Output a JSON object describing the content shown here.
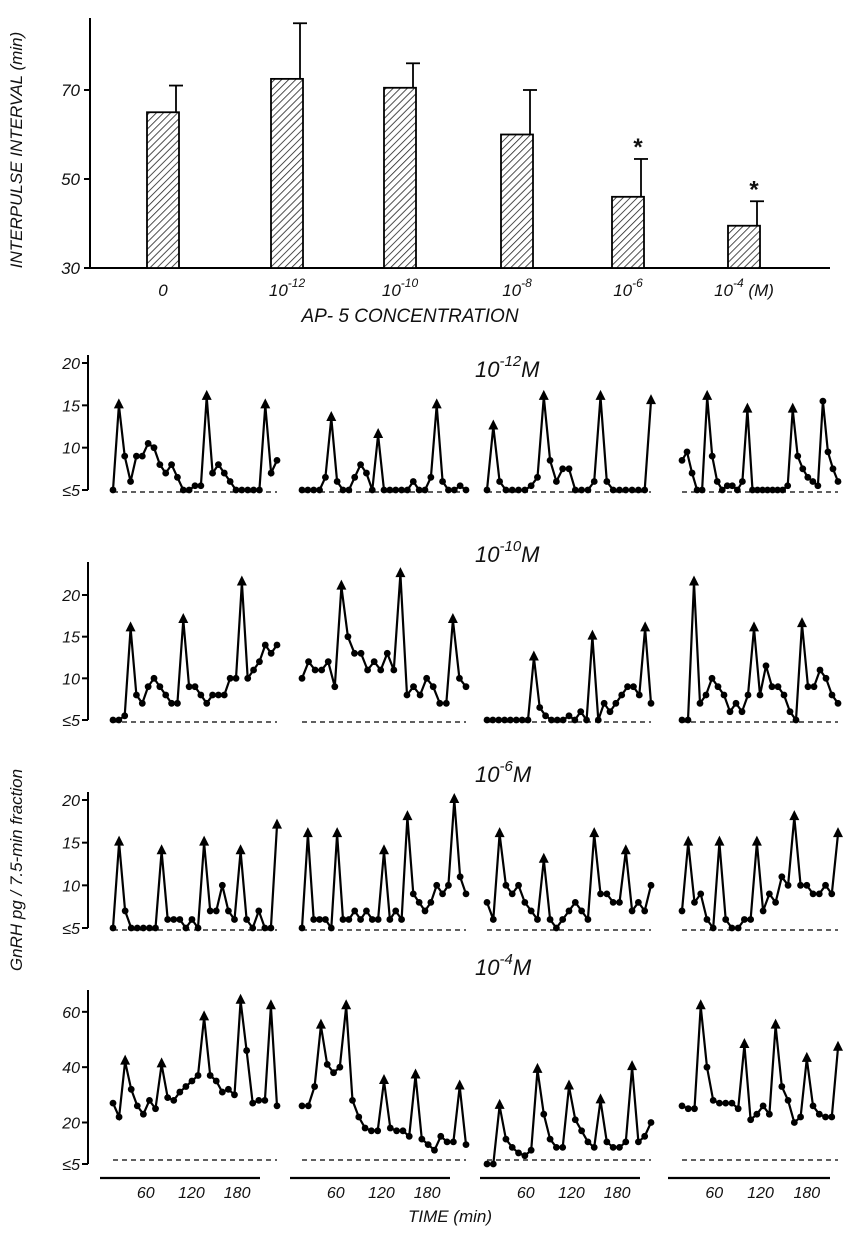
{
  "chart_data": [
    {
      "type": "bar",
      "ylabel": "INTERPULSE  INTERVAL (min)",
      "xlabel": "AP- 5  CONCENTRATION",
      "ylim": [
        30,
        90
      ],
      "y_ticks": [
        30,
        50,
        70
      ],
      "categories": [
        "0",
        "10-12",
        "10-10",
        "10-8",
        "10-6",
        "10-4 (M)"
      ],
      "category_labels": [
        {
          "base": "0",
          "exp": ""
        },
        {
          "base": "10",
          "exp": "-12"
        },
        {
          "base": "10",
          "exp": "-10"
        },
        {
          "base": "10",
          "exp": "-8"
        },
        {
          "base": "10",
          "exp": "-6"
        },
        {
          "base": "10",
          "exp": "-4",
          "suffix": "(M)"
        }
      ],
      "values": [
        65,
        72.5,
        70.5,
        60,
        46,
        39.5
      ],
      "error_upper": [
        71,
        85,
        76,
        70,
        54.5,
        45
      ],
      "significance": [
        "",
        "",
        "",
        "",
        "*",
        "*"
      ],
      "bar_fill": "hatched",
      "grid": false
    },
    {
      "type": "line",
      "xlabel": "TIME (min)",
      "ylabel": "GnRH    pg / 7.5-min  fraction",
      "x_ticks": [
        60,
        120,
        180
      ],
      "panels": [
        {
          "label_base": "10",
          "label_exp": "-12",
          "label_unit": "M",
          "y_ticks": [
            "20",
            "15",
            "10",
            "≤5"
          ],
          "ylim": [
            5,
            20
          ],
          "series": [
            {
              "values": [
                5,
                15,
                9,
                6,
                9,
                9,
                10.5,
                10,
                8,
                7,
                8,
                6.5,
                5,
                5,
                5.5,
                5.5,
                16,
                7,
                8,
                7,
                6,
                5,
                5,
                5,
                5,
                5,
                15,
                7,
                8.5
              ],
              "pulses": [
                1,
                16,
                26
              ]
            },
            {
              "values": [
                5,
                5,
                5,
                5,
                6.5,
                13.5,
                6,
                5,
                5,
                6.5,
                8,
                7,
                5,
                11.5,
                5,
                5,
                5,
                5,
                5,
                6,
                5,
                5,
                6.5,
                15,
                6,
                5,
                5,
                5.5,
                5
              ],
              "pulses": [
                5,
                13,
                23
              ]
            },
            {
              "values": [
                5,
                12.5,
                6,
                5,
                5,
                5,
                5,
                5.5,
                6.5,
                16,
                8.5,
                6,
                7.5,
                7.5,
                5,
                5,
                5,
                6,
                16,
                6,
                5,
                5,
                5,
                5,
                5,
                5,
                15.5
              ],
              "pulses": [
                1,
                9,
                18,
                26
              ]
            },
            {
              "values": [
                8.5,
                9.5,
                7,
                5,
                5,
                16,
                9,
                6,
                5,
                5.5,
                5.5,
                5,
                6,
                14.5,
                5,
                5,
                5,
                5,
                5,
                5,
                5,
                5.5,
                14.5,
                9,
                7.5,
                6.5,
                6,
                5.5,
                15.5,
                9.5,
                7.5,
                6
              ],
              "pulses": [
                5,
                13,
                22
              ]
            }
          ]
        },
        {
          "label_base": "10",
          "label_exp": "-10",
          "label_unit": "M",
          "y_ticks": [
            "20",
            "15",
            "10",
            "≤5"
          ],
          "ylim": [
            5,
            23
          ],
          "series": [
            {
              "values": [
                5,
                5,
                5.5,
                16,
                8,
                7,
                9,
                10,
                9,
                8,
                7,
                7,
                17,
                9,
                9,
                8,
                7,
                8,
                8,
                8,
                10,
                10,
                21.5,
                10,
                11,
                12,
                14,
                13,
                14
              ],
              "pulses": [
                3,
                12,
                22
              ]
            },
            {
              "values": [
                10,
                12,
                11,
                11,
                12,
                9,
                21,
                15,
                13,
                13,
                11,
                12,
                11,
                13,
                11,
                22.5,
                8,
                9,
                8,
                10,
                9,
                7,
                7,
                17,
                10,
                9
              ],
              "pulses": [
                6,
                15,
                23
              ]
            },
            {
              "values": [
                5,
                5,
                5,
                5,
                5,
                5,
                5,
                5,
                12.5,
                6.5,
                5.5,
                5,
                5,
                5,
                5.5,
                5,
                6,
                5,
                15,
                5,
                7,
                6,
                7,
                8,
                9,
                9,
                8,
                16,
                7
              ],
              "pulses": [
                8,
                18,
                27
              ]
            },
            {
              "values": [
                5,
                5,
                21.5,
                7,
                8,
                10,
                9,
                8,
                6,
                7,
                6,
                8,
                16,
                8,
                11.5,
                9,
                9,
                8,
                6,
                5,
                16.5,
                9,
                9,
                11,
                10,
                8,
                7
              ],
              "pulses": [
                2,
                12,
                20
              ]
            }
          ]
        },
        {
          "label_base": "10",
          "label_exp": "-6",
          "label_unit": "M",
          "y_ticks": [
            "20",
            "15",
            "10",
            "≤5"
          ],
          "ylim": [
            5,
            20
          ],
          "series": [
            {
              "values": [
                5,
                15,
                7,
                5,
                5,
                5,
                5,
                5,
                14,
                6,
                6,
                6,
                5,
                6,
                5,
                15,
                7,
                7,
                10,
                7,
                6,
                14,
                6,
                5,
                7,
                5,
                5,
                17
              ],
              "pulses": [
                1,
                8,
                15,
                21,
                27
              ]
            },
            {
              "values": [
                5,
                16,
                6,
                6,
                6,
                5,
                16,
                6,
                6,
                7,
                6,
                7,
                6,
                6,
                14,
                6,
                7,
                6,
                18,
                9,
                8,
                7,
                8,
                10,
                9,
                10,
                20,
                11,
                9
              ],
              "pulses": [
                1,
                6,
                14,
                18,
                26
              ]
            },
            {
              "values": [
                8,
                6,
                16,
                10,
                9,
                10,
                8,
                7,
                6,
                13,
                6,
                5,
                6,
                7,
                8,
                7,
                6,
                16,
                9,
                9,
                8,
                8,
                14,
                7,
                8,
                7,
                10
              ],
              "pulses": [
                2,
                9,
                17,
                22
              ]
            },
            {
              "values": [
                7,
                15,
                8,
                9,
                6,
                5,
                15,
                6,
                5,
                5,
                6,
                6,
                15,
                7,
                9,
                8,
                11,
                10,
                18,
                10,
                10,
                9,
                9,
                10,
                9,
                16
              ],
              "pulses": [
                1,
                6,
                12,
                18,
                25
              ]
            }
          ]
        },
        {
          "label_base": "10",
          "label_exp": "-4",
          "label_unit": "M",
          "y_ticks": [
            "60",
            "40",
            "20",
            "≤5"
          ],
          "ylim": [
            5,
            65
          ],
          "series": [
            {
              "values": [
                27,
                22,
                42,
                32,
                26,
                23,
                28,
                25,
                41,
                29,
                28,
                31,
                33,
                35,
                37,
                58,
                37,
                35,
                31,
                32,
                30,
                64,
                46,
                27,
                28,
                28,
                62,
                26
              ],
              "pulses": [
                2,
                8,
                15,
                21,
                26
              ]
            },
            {
              "values": [
                26,
                26,
                33,
                55,
                41,
                38,
                40,
                62,
                28,
                22,
                18,
                17,
                17,
                35,
                18,
                17,
                17,
                15,
                37,
                14,
                12,
                10,
                15,
                13,
                13,
                33,
                12
              ],
              "pulses": [
                3,
                7,
                13,
                18,
                25
              ]
            },
            {
              "values": [
                5,
                5,
                26,
                14,
                11,
                9,
                8,
                10,
                39,
                23,
                14,
                11,
                11,
                33,
                21,
                17,
                13,
                11,
                28,
                13,
                11,
                11,
                13,
                40,
                13,
                15,
                20
              ],
              "pulses": [
                2,
                8,
                13,
                18,
                23
              ]
            },
            {
              "values": [
                26,
                25,
                25,
                62,
                40,
                28,
                27,
                27,
                27,
                25,
                48,
                21,
                23,
                26,
                23,
                55,
                33,
                28,
                20,
                22,
                43,
                26,
                23,
                22,
                22,
                47
              ],
              "pulses": [
                3,
                10,
                15,
                20,
                25
              ]
            }
          ]
        }
      ]
    }
  ]
}
